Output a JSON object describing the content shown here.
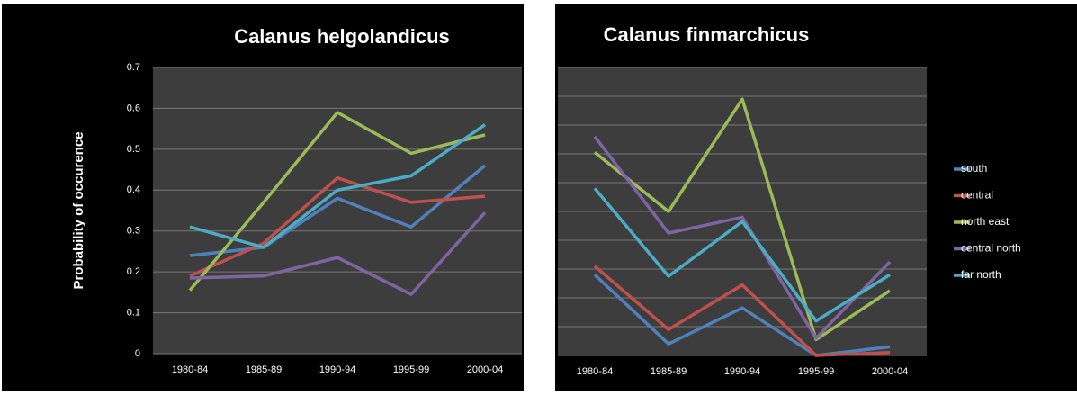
{
  "chart_data": [
    {
      "type": "line",
      "title": "Calanus helgolandicus",
      "y_label": "Probability of occurence",
      "categories": [
        "1980-84",
        "1985-89",
        "1990-94",
        "1995-99",
        "2000-04"
      ],
      "ylim": [
        0,
        0.7
      ],
      "yticks": [
        0,
        0.1,
        0.2,
        0.3,
        0.4,
        0.5,
        0.6,
        0.7
      ],
      "ytick_labels": true,
      "grid": true,
      "legend": false,
      "series": [
        {
          "name": "south",
          "color": "#4f81bd",
          "values": [
            0.24,
            0.26,
            0.38,
            0.31,
            0.46
          ]
        },
        {
          "name": "central",
          "color": "#c0504d",
          "values": [
            0.19,
            0.27,
            0.43,
            0.37,
            0.385
          ]
        },
        {
          "name": "north east",
          "color": "#9bbb59",
          "values": [
            0.155,
            0.37,
            0.59,
            0.49,
            0.535
          ]
        },
        {
          "name": "central north",
          "color": "#8064a2",
          "values": [
            0.185,
            0.19,
            0.235,
            0.145,
            0.345
          ]
        },
        {
          "name": "far north",
          "color": "#4bacc6",
          "values": [
            0.31,
            0.26,
            0.4,
            0.435,
            0.56
          ]
        }
      ]
    },
    {
      "type": "line",
      "title": "Calanus finmarchicus",
      "categories": [
        "1980-84",
        "1985-89",
        "1990-94",
        "1995-99",
        "2000-04"
      ],
      "ylim": [
        0,
        10
      ],
      "yticks": [
        0,
        1,
        2,
        3,
        4,
        5,
        6,
        7,
        8,
        9,
        10
      ],
      "ytick_labels": false,
      "grid": true,
      "legend": "right",
      "series": [
        {
          "name": "south",
          "color": "#4f81bd",
          "values": [
            2.8,
            0.4,
            1.65,
            0,
            0.3
          ]
        },
        {
          "name": "central",
          "color": "#c0504d",
          "values": [
            3.1,
            0.9,
            2.45,
            0,
            0.1
          ]
        },
        {
          "name": "north east",
          "color": "#9bbb59",
          "values": [
            7.05,
            5.0,
            8.9,
            0.55,
            2.25
          ]
        },
        {
          "name": "central north",
          "color": "#8064a2",
          "values": [
            7.6,
            4.25,
            4.8,
            0.6,
            3.25
          ]
        },
        {
          "name": "far north",
          "color": "#4bacc6",
          "values": [
            5.8,
            2.75,
            4.65,
            1.2,
            2.8
          ]
        }
      ]
    }
  ]
}
